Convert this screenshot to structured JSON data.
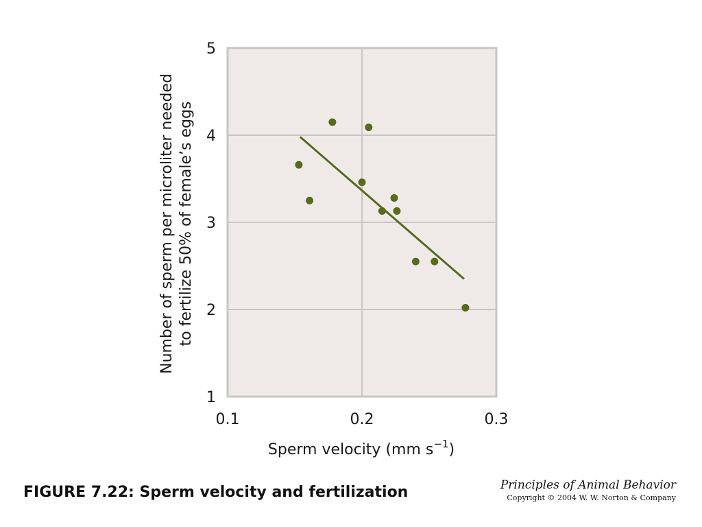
{
  "caption": "FIGURE 7.22: Sperm velocity and fertilization",
  "credit": {
    "title": "Principles of Animal Behavior",
    "copyright": "Copyright © 2004 W. W. Norton & Company"
  },
  "colors": {
    "plot_background": "#efeae8",
    "grid": "#c9c5c3",
    "frame": "#c9c5c3",
    "points": "#556b1e",
    "trend_line": "#556b1e"
  },
  "chart_data": {
    "type": "scatter",
    "title": "",
    "xlabel": "Sperm velocity (mm s",
    "xlabel_superscript": "−1",
    "xlabel_suffix": ")",
    "ylabel_lines": [
      "Number of sperm per microliter needed",
      "to fertilize 50% of female’s eggs"
    ],
    "xlim": [
      0.1,
      0.3
    ],
    "ylim": [
      1,
      5
    ],
    "x_ticks": [
      {
        "value": 0.1,
        "label": "0.1"
      },
      {
        "value": 0.2,
        "label": "0.2"
      },
      {
        "value": 0.3,
        "label": "0.3"
      }
    ],
    "y_ticks": [
      {
        "value": 1,
        "label": "1"
      },
      {
        "value": 2,
        "label": "2"
      },
      {
        "value": 3,
        "label": "3"
      },
      {
        "value": 4,
        "label": "4"
      },
      {
        "value": 5,
        "label": "5"
      }
    ],
    "grid": true,
    "points": [
      {
        "x": 0.153,
        "y": 3.66
      },
      {
        "x": 0.161,
        "y": 3.25
      },
      {
        "x": 0.178,
        "y": 4.15
      },
      {
        "x": 0.2,
        "y": 3.46
      },
      {
        "x": 0.205,
        "y": 4.09
      },
      {
        "x": 0.215,
        "y": 3.13
      },
      {
        "x": 0.224,
        "y": 3.28
      },
      {
        "x": 0.226,
        "y": 3.13
      },
      {
        "x": 0.24,
        "y": 2.55
      },
      {
        "x": 0.254,
        "y": 2.55
      },
      {
        "x": 0.277,
        "y": 2.02
      }
    ],
    "trend_line": {
      "x1": 0.154,
      "y1": 3.98,
      "x2": 0.276,
      "y2": 2.35
    }
  }
}
